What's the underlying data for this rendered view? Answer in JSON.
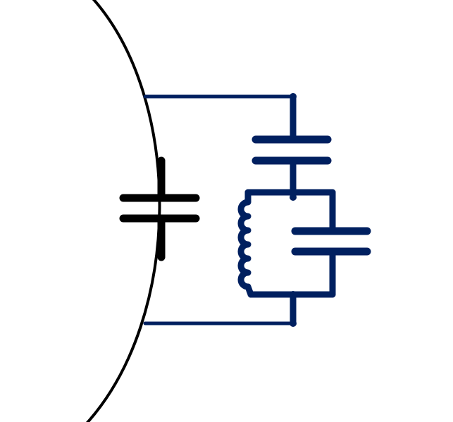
{
  "colors": {
    "background": "#ffffff",
    "arc": "#000000",
    "main_capacitor": "#000000",
    "circuit": "#002060"
  },
  "components": [
    {
      "name": "capacitor",
      "color_key": "main_capacitor"
    },
    {
      "name": "capacitor",
      "color_key": "circuit"
    },
    {
      "name": "inductor",
      "color_key": "circuit"
    },
    {
      "name": "capacitor",
      "color_key": "circuit"
    }
  ]
}
